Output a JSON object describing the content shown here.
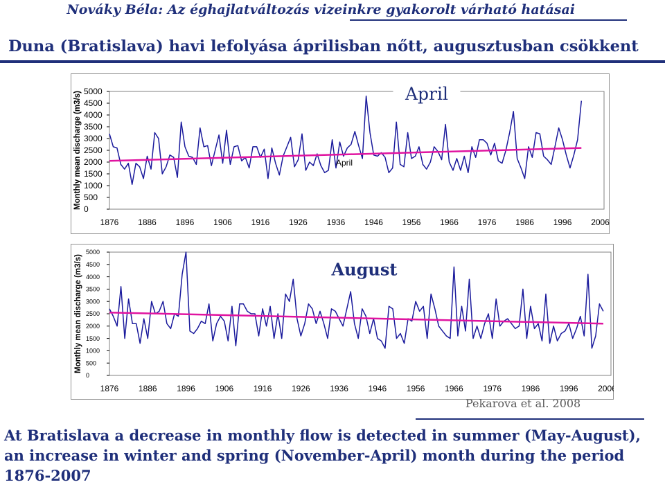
{
  "header": {
    "title": "Nováky Béla: Az éghajlatváltozás vizeinkre gyakorolt várható hatásai"
  },
  "slide": {
    "title": "Duna (Bratislava) havi lefolyása áprilisban nőtt, augusztusban csökkent"
  },
  "credit": "Pekarova et al. 2008",
  "summary": "At Bratislava a decrease in monthly flow is detected in summer (May-August), an increase in winter and spring (November-April) month during the period 1876-2007",
  "colors": {
    "accent": "#1f2f7a",
    "series": "#1a1a9c",
    "trend": "#e014a0",
    "plot_bg": "#ffffff"
  },
  "chart_data": [
    {
      "type": "line",
      "title": "April",
      "annotation": "April",
      "ylabel": "Monthly mean discharge (m3/s)",
      "xlabel": "",
      "ylim": [
        0,
        5000
      ],
      "xlim": [
        1876,
        2007
      ],
      "yticks": [
        0,
        500,
        1000,
        1500,
        2000,
        2500,
        3000,
        3500,
        4000,
        4500,
        5000
      ],
      "xticks": [
        1876,
        1886,
        1896,
        1906,
        1916,
        1926,
        1936,
        1946,
        1956,
        1966,
        1976,
        1986,
        1996,
        2006
      ],
      "grid": false,
      "x_start": 1876,
      "values": [
        3200,
        2650,
        2600,
        1900,
        1700,
        1950,
        1050,
        1950,
        1800,
        1300,
        2250,
        1700,
        3250,
        3000,
        1500,
        1800,
        2300,
        2200,
        1350,
        3700,
        2650,
        2250,
        2200,
        1900,
        3450,
        2650,
        2700,
        1850,
        2500,
        3150,
        1950,
        3350,
        1900,
        2650,
        2700,
        2050,
        2200,
        1750,
        2650,
        2650,
        2200,
        2550,
        1300,
        2600,
        1950,
        1450,
        2250,
        2650,
        3050,
        1800,
        2100,
        3200,
        1650,
        2000,
        1850,
        2350,
        1850,
        1550,
        1650,
        2950,
        1750,
        2850,
        2250,
        2600,
        2750,
        3300,
        2700,
        2150,
        4800,
        3250,
        2300,
        2250,
        2400,
        2200,
        1550,
        1750,
        3700,
        1900,
        1800,
        3250,
        2150,
        2250,
        2650,
        1900,
        1700,
        2000,
        2650,
        2450,
        2100,
        3600,
        2000,
        1650,
        2150,
        1650,
        2250,
        1550,
        2650,
        2200,
        2950,
        2950,
        2800,
        2300,
        2800,
        2050,
        1950,
        2500,
        3250,
        4150,
        2150,
        1750,
        1300,
        2650,
        2200,
        3250,
        3200,
        2250,
        2100,
        1900,
        2650,
        3450,
        2950,
        2300,
        1750,
        2300,
        2950,
        4600
      ],
      "trend": [
        2050,
        2600
      ]
    },
    {
      "type": "line",
      "title": "August",
      "ylabel": "Monthly mean discharge (m3/s)",
      "xlabel": "",
      "ylim": [
        0,
        5000
      ],
      "xlim": [
        1876,
        2007
      ],
      "yticks": [
        0,
        500,
        1000,
        1500,
        2000,
        2500,
        3000,
        3500,
        4000,
        4500,
        5000
      ],
      "xticks": [
        1876,
        1886,
        1896,
        1906,
        1916,
        1926,
        1936,
        1946,
        1956,
        1966,
        1976,
        1986,
        1996,
        2006
      ],
      "grid": false,
      "x_start": 1876,
      "values": [
        2700,
        2400,
        2000,
        3600,
        1500,
        3100,
        2100,
        2100,
        1300,
        2300,
        1500,
        3000,
        2500,
        2600,
        3000,
        2100,
        1900,
        2500,
        2400,
        4100,
        5000,
        1800,
        1700,
        1900,
        2200,
        2100,
        2900,
        1400,
        2100,
        2400,
        2200,
        1400,
        2800,
        1200,
        2900,
        2900,
        2600,
        2500,
        2500,
        1600,
        2700,
        2000,
        2800,
        1500,
        2500,
        1500,
        3300,
        3000,
        3900,
        2300,
        1600,
        2100,
        2900,
        2700,
        2100,
        2600,
        2100,
        1500,
        2700,
        2600,
        2300,
        2000,
        2700,
        3400,
        2100,
        1500,
        2700,
        2400,
        1700,
        2300,
        1500,
        1400,
        1100,
        2800,
        2700,
        1500,
        1700,
        1300,
        2300,
        2200,
        3000,
        2600,
        2800,
        1500,
        3300,
        2700,
        2000,
        1800,
        1600,
        1500,
        4400,
        1600,
        2800,
        1800,
        3900,
        1500,
        2000,
        1500,
        2100,
        2500,
        1500,
        3100,
        2000,
        2200,
        2300,
        2100,
        1900,
        2000,
        3500,
        1500,
        2800,
        1900,
        2100,
        1400,
        3300,
        1300,
        2000,
        1400,
        1700,
        1800,
        2100,
        1500,
        1900,
        2400,
        1600,
        4100,
        1100,
        1600,
        2900,
        2600
      ],
      "trend": [
        2550,
        2100
      ]
    }
  ]
}
